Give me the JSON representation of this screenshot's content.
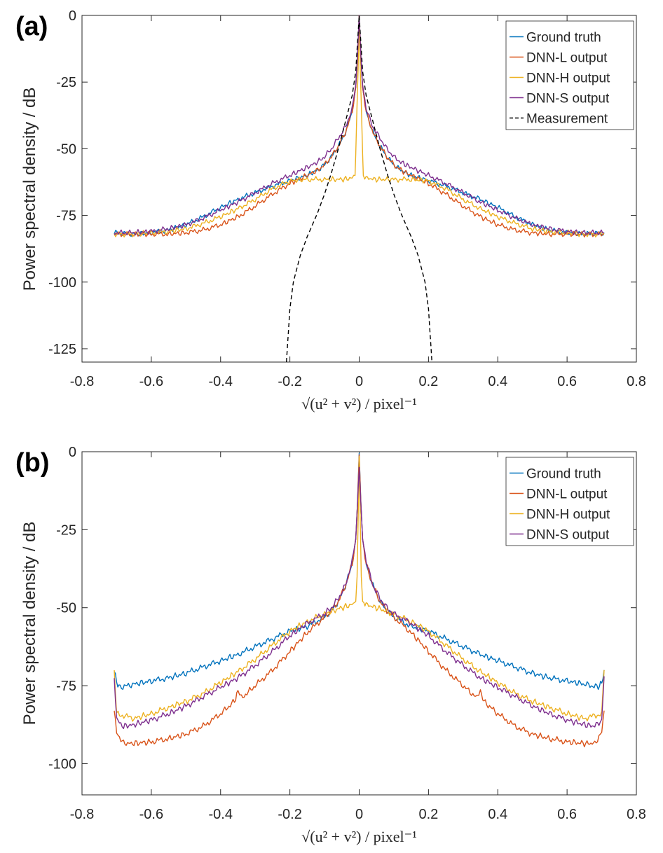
{
  "chart_data": [
    {
      "panel": "a",
      "panel_label": "(a)",
      "type": "line",
      "xlabel": "√(u² + v²)  / pixel⁻¹",
      "ylabel": "Power spectral density / dB",
      "xlim": [
        -0.8,
        0.8
      ],
      "ylim": [
        -130,
        0
      ],
      "xticks": [
        -0.8,
        -0.6,
        -0.4,
        -0.2,
        0,
        0.2,
        0.4,
        0.6,
        0.8
      ],
      "xtick_labels": [
        "-0.8",
        "-0.6",
        "-0.4",
        "-0.2",
        "0",
        "0.2",
        "0.4",
        "0.6",
        "0.8"
      ],
      "yticks": [
        0,
        -25,
        -50,
        -75,
        -100,
        -125
      ],
      "ytick_labels": [
        "0",
        "-25",
        "-50",
        "-75",
        "-100",
        "-125"
      ],
      "legend_position": "top-right",
      "series": [
        {
          "name": "Ground truth",
          "color": "#0072BD",
          "style": "solid",
          "x": [
            0,
            0.005,
            0.01,
            0.02,
            0.04,
            0.06,
            0.08,
            0.1,
            0.12,
            0.15,
            0.2,
            0.25,
            0.3,
            0.35,
            0.4,
            0.45,
            0.5,
            0.55,
            0.6,
            0.65,
            0.707
          ],
          "y": [
            0,
            -16,
            -27,
            -36,
            -44,
            -49,
            -53,
            -56,
            -58,
            -60,
            -62,
            -64,
            -66.5,
            -69,
            -72,
            -75.5,
            -78.5,
            -80.5,
            -81.5,
            -82,
            -81.5
          ]
        },
        {
          "name": "DNN-L output",
          "color": "#D95319",
          "style": "solid",
          "x": [
            0,
            0.005,
            0.01,
            0.02,
            0.04,
            0.06,
            0.08,
            0.1,
            0.12,
            0.15,
            0.2,
            0.25,
            0.3,
            0.35,
            0.4,
            0.45,
            0.5,
            0.55,
            0.6,
            0.65,
            0.707
          ],
          "y": [
            0,
            -16,
            -27,
            -36,
            -44,
            -49,
            -53,
            -56,
            -58,
            -60,
            -63,
            -67,
            -71.5,
            -75.5,
            -78.5,
            -80.5,
            -81.5,
            -82,
            -82,
            -82,
            -82
          ]
        },
        {
          "name": "DNN-H output",
          "color": "#EDB120",
          "style": "solid",
          "x": [
            0,
            0.003,
            0.006,
            0.01,
            0.012,
            0.02,
            0.05,
            0.1,
            0.15,
            0.2,
            0.25,
            0.3,
            0.35,
            0.4,
            0.45,
            0.5,
            0.55,
            0.6,
            0.65,
            0.707
          ],
          "y": [
            0,
            -20,
            -33,
            -52,
            -60,
            -61,
            -61.5,
            -61.5,
            -61.5,
            -62,
            -65,
            -69,
            -72.5,
            -75.5,
            -78,
            -80,
            -81,
            -81.5,
            -82,
            -82
          ]
        },
        {
          "name": "DNN-S output",
          "color": "#7E2F8E",
          "style": "solid",
          "x": [
            0,
            0.005,
            0.01,
            0.02,
            0.04,
            0.06,
            0.08,
            0.1,
            0.12,
            0.15,
            0.2,
            0.25,
            0.3,
            0.35,
            0.4,
            0.45,
            0.5,
            0.55,
            0.6,
            0.65,
            0.707
          ],
          "y": [
            0,
            -16,
            -26,
            -35,
            -42,
            -46,
            -50,
            -53,
            -55,
            -57,
            -60,
            -63,
            -66.5,
            -70,
            -73,
            -76,
            -78.5,
            -80,
            -81,
            -81.5,
            -81.5
          ]
        },
        {
          "name": "Measurement",
          "color": "#000000",
          "style": "dashed",
          "x": [
            0,
            0.01,
            0.02,
            0.04,
            0.06,
            0.08,
            0.1,
            0.12,
            0.15,
            0.17,
            0.19,
            0.2,
            0.205,
            0.21
          ],
          "y": [
            0,
            -21,
            -30,
            -40,
            -50,
            -59,
            -67,
            -74,
            -83,
            -90,
            -100,
            -110,
            -120,
            -130
          ]
        }
      ]
    },
    {
      "panel": "b",
      "panel_label": "(b)",
      "type": "line",
      "xlabel": "√(u² + v²)  / pixel⁻¹",
      "ylabel": "Power spectral density / dB",
      "xlim": [
        -0.8,
        0.8
      ],
      "ylim": [
        -110,
        0
      ],
      "xticks": [
        -0.8,
        -0.6,
        -0.4,
        -0.2,
        0,
        0.2,
        0.4,
        0.6,
        0.8
      ],
      "xtick_labels": [
        "-0.8",
        "-0.6",
        "-0.4",
        "-0.2",
        "0",
        "0.2",
        "0.4",
        "0.6",
        "0.8"
      ],
      "yticks": [
        0,
        -25,
        -50,
        -75,
        -100
      ],
      "ytick_labels": [
        "0",
        "-25",
        "-50",
        "-75",
        "-100"
      ],
      "legend_position": "top-right",
      "series": [
        {
          "name": "Ground truth",
          "color": "#0072BD",
          "style": "solid",
          "x": [
            0,
            0.005,
            0.01,
            0.02,
            0.04,
            0.06,
            0.08,
            0.1,
            0.15,
            0.2,
            0.25,
            0.3,
            0.35,
            0.4,
            0.45,
            0.5,
            0.55,
            0.6,
            0.65,
            0.69,
            0.7,
            0.707
          ],
          "y": [
            -0.5,
            -17,
            -28,
            -36,
            -43,
            -48,
            -51,
            -53,
            -56,
            -57.5,
            -60,
            -62.5,
            -65,
            -67,
            -69,
            -71,
            -72.5,
            -73.5,
            -74.5,
            -75.5,
            -74,
            -70
          ]
        },
        {
          "name": "DNN-L output",
          "color": "#D95319",
          "style": "solid",
          "x": [
            0,
            0.005,
            0.01,
            0.02,
            0.04,
            0.06,
            0.08,
            0.1,
            0.15,
            0.2,
            0.25,
            0.3,
            0.34,
            0.35,
            0.36,
            0.4,
            0.45,
            0.5,
            0.55,
            0.6,
            0.65,
            0.68,
            0.7,
            0.707
          ],
          "y": [
            -1,
            -17,
            -28,
            -36,
            -43,
            -48,
            -51,
            -53,
            -58,
            -64,
            -70,
            -75,
            -79,
            -77,
            -80,
            -84,
            -88,
            -90.5,
            -92,
            -93,
            -93.5,
            -93.5,
            -90,
            -83
          ]
        },
        {
          "name": "DNN-H output",
          "color": "#EDB120",
          "style": "solid",
          "x": [
            0,
            0.003,
            0.006,
            0.01,
            0.02,
            0.05,
            0.1,
            0.15,
            0.2,
            0.25,
            0.3,
            0.35,
            0.4,
            0.45,
            0.5,
            0.55,
            0.6,
            0.65,
            0.7,
            0.707
          ],
          "y": [
            -1.5,
            -22,
            -40,
            -48,
            -49,
            -50,
            -52,
            -54.5,
            -57.5,
            -62,
            -66.5,
            -70.5,
            -74,
            -77.5,
            -80,
            -82,
            -84,
            -85.5,
            -84,
            -70
          ]
        },
        {
          "name": "DNN-S output",
          "color": "#7E2F8E",
          "style": "solid",
          "x": [
            0,
            0.005,
            0.01,
            0.02,
            0.04,
            0.06,
            0.08,
            0.1,
            0.15,
            0.2,
            0.25,
            0.3,
            0.35,
            0.4,
            0.45,
            0.5,
            0.55,
            0.6,
            0.65,
            0.68,
            0.7,
            0.707
          ],
          "y": [
            -5,
            -17,
            -28,
            -35,
            -43,
            -47,
            -50,
            -52,
            -55,
            -59,
            -64,
            -68.5,
            -72.5,
            -75.5,
            -78.5,
            -81.5,
            -84,
            -86,
            -87.5,
            -88,
            -86,
            -72
          ]
        }
      ]
    }
  ]
}
